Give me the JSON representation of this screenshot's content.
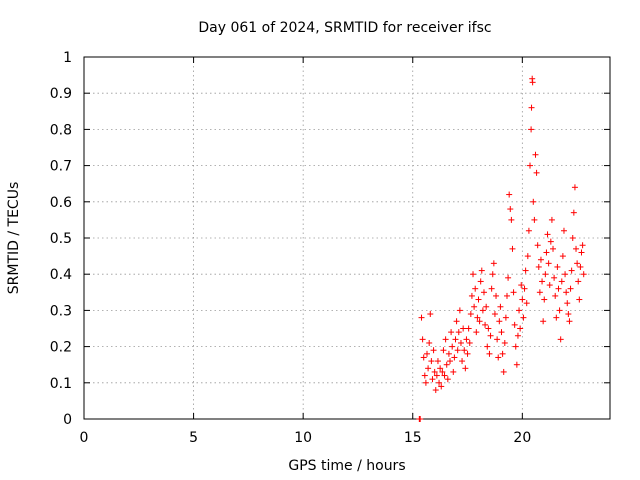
{
  "chart_data": {
    "type": "scatter",
    "title": "Day 061 of 2024, SRMTID for receiver ifsc",
    "xlabel": "GPS time / hours",
    "ylabel": "SRMTID / TECUs",
    "xlim": [
      0,
      24
    ],
    "ylim": [
      0,
      1
    ],
    "xticks": [
      0,
      5,
      10,
      15,
      20
    ],
    "xtick_labels": [
      "0",
      "5",
      "10",
      "15",
      "20"
    ],
    "yticks": [
      0,
      0.1,
      0.2,
      0.3,
      0.4,
      0.5,
      0.6,
      0.7,
      0.8,
      0.9,
      1
    ],
    "ytick_labels": [
      "0",
      "0.1",
      "0.2",
      "0.3",
      "0.4",
      "0.5",
      "0.6",
      "0.7",
      "0.8",
      "0.9",
      "1"
    ],
    "grid": true,
    "marker": "+",
    "color": "#ff0000",
    "series": [
      {
        "name": "SRMTID",
        "points": [
          [
            15.3,
            0.0
          ],
          [
            15.32,
            0.0
          ],
          [
            15.34,
            0.0
          ],
          [
            15.4,
            0.28
          ],
          [
            15.45,
            0.22
          ],
          [
            15.5,
            0.17
          ],
          [
            15.55,
            0.12
          ],
          [
            15.6,
            0.1
          ],
          [
            15.65,
            0.18
          ],
          [
            15.7,
            0.14
          ],
          [
            15.75,
            0.21
          ],
          [
            15.8,
            0.29
          ],
          [
            15.85,
            0.16
          ],
          [
            15.9,
            0.11
          ],
          [
            15.95,
            0.19
          ],
          [
            16.0,
            0.13
          ],
          [
            16.05,
            0.08
          ],
          [
            16.1,
            0.12
          ],
          [
            16.15,
            0.16
          ],
          [
            16.2,
            0.1
          ],
          [
            16.25,
            0.14
          ],
          [
            16.3,
            0.09
          ],
          [
            16.35,
            0.13
          ],
          [
            16.4,
            0.19
          ],
          [
            16.45,
            0.12
          ],
          [
            16.5,
            0.22
          ],
          [
            16.55,
            0.15
          ],
          [
            16.6,
            0.11
          ],
          [
            16.65,
            0.18
          ],
          [
            16.7,
            0.16
          ],
          [
            16.75,
            0.24
          ],
          [
            16.8,
            0.2
          ],
          [
            16.85,
            0.13
          ],
          [
            16.9,
            0.17
          ],
          [
            16.95,
            0.22
          ],
          [
            17.0,
            0.27
          ],
          [
            17.05,
            0.19
          ],
          [
            17.1,
            0.24
          ],
          [
            17.15,
            0.3
          ],
          [
            17.2,
            0.21
          ],
          [
            17.25,
            0.16
          ],
          [
            17.3,
            0.25
          ],
          [
            17.35,
            0.19
          ],
          [
            17.4,
            0.14
          ],
          [
            17.45,
            0.22
          ],
          [
            17.5,
            0.18
          ],
          [
            17.55,
            0.25
          ],
          [
            17.6,
            0.21
          ],
          [
            17.65,
            0.29
          ],
          [
            17.7,
            0.34
          ],
          [
            17.75,
            0.4
          ],
          [
            17.8,
            0.31
          ],
          [
            17.85,
            0.36
          ],
          [
            17.9,
            0.24
          ],
          [
            17.95,
            0.28
          ],
          [
            18.0,
            0.33
          ],
          [
            18.05,
            0.27
          ],
          [
            18.1,
            0.38
          ],
          [
            18.15,
            0.41
          ],
          [
            18.2,
            0.3
          ],
          [
            18.25,
            0.35
          ],
          [
            18.3,
            0.26
          ],
          [
            18.35,
            0.31
          ],
          [
            18.4,
            0.2
          ],
          [
            18.45,
            0.25
          ],
          [
            18.5,
            0.18
          ],
          [
            18.55,
            0.23
          ],
          [
            18.6,
            0.36
          ],
          [
            18.65,
            0.4
          ],
          [
            18.7,
            0.43
          ],
          [
            18.75,
            0.29
          ],
          [
            18.8,
            0.34
          ],
          [
            18.85,
            0.22
          ],
          [
            18.9,
            0.17
          ],
          [
            18.95,
            0.27
          ],
          [
            19.0,
            0.31
          ],
          [
            19.05,
            0.24
          ],
          [
            19.1,
            0.18
          ],
          [
            19.15,
            0.13
          ],
          [
            19.2,
            0.21
          ],
          [
            19.25,
            0.28
          ],
          [
            19.3,
            0.34
          ],
          [
            19.35,
            0.39
          ],
          [
            19.4,
            0.62
          ],
          [
            19.45,
            0.58
          ],
          [
            19.5,
            0.55
          ],
          [
            19.55,
            0.47
          ],
          [
            19.6,
            0.35
          ],
          [
            19.65,
            0.26
          ],
          [
            19.7,
            0.2
          ],
          [
            19.75,
            0.15
          ],
          [
            19.8,
            0.23
          ],
          [
            19.85,
            0.3
          ],
          [
            19.9,
            0.25
          ],
          [
            19.95,
            0.37
          ],
          [
            20.0,
            0.33
          ],
          [
            20.05,
            0.28
          ],
          [
            20.1,
            0.36
          ],
          [
            20.15,
            0.41
          ],
          [
            20.2,
            0.32
          ],
          [
            20.25,
            0.45
          ],
          [
            20.3,
            0.52
          ],
          [
            20.35,
            0.7
          ],
          [
            20.4,
            0.8
          ],
          [
            20.42,
            0.86
          ],
          [
            20.45,
            0.94
          ],
          [
            20.47,
            0.93
          ],
          [
            20.5,
            0.6
          ],
          [
            20.55,
            0.55
          ],
          [
            20.6,
            0.73
          ],
          [
            20.65,
            0.68
          ],
          [
            20.7,
            0.48
          ],
          [
            20.75,
            0.42
          ],
          [
            20.8,
            0.35
          ],
          [
            20.85,
            0.44
          ],
          [
            20.9,
            0.38
          ],
          [
            20.95,
            0.27
          ],
          [
            21.0,
            0.33
          ],
          [
            21.05,
            0.4
          ],
          [
            21.1,
            0.46
          ],
          [
            21.15,
            0.51
          ],
          [
            21.2,
            0.43
          ],
          [
            21.25,
            0.37
          ],
          [
            21.3,
            0.49
          ],
          [
            21.35,
            0.55
          ],
          [
            21.4,
            0.47
          ],
          [
            21.45,
            0.39
          ],
          [
            21.5,
            0.34
          ],
          [
            21.55,
            0.28
          ],
          [
            21.6,
            0.42
          ],
          [
            21.65,
            0.36
          ],
          [
            21.7,
            0.3
          ],
          [
            21.75,
            0.22
          ],
          [
            21.8,
            0.38
          ],
          [
            21.85,
            0.45
          ],
          [
            21.9,
            0.52
          ],
          [
            21.95,
            0.4
          ],
          [
            22.0,
            0.35
          ],
          [
            22.05,
            0.32
          ],
          [
            22.1,
            0.29
          ],
          [
            22.15,
            0.27
          ],
          [
            22.2,
            0.36
          ],
          [
            22.25,
            0.41
          ],
          [
            22.3,
            0.5
          ],
          [
            22.35,
            0.57
          ],
          [
            22.4,
            0.64
          ],
          [
            22.45,
            0.47
          ],
          [
            22.5,
            0.43
          ],
          [
            22.55,
            0.38
          ],
          [
            22.6,
            0.33
          ],
          [
            22.65,
            0.42
          ],
          [
            22.7,
            0.46
          ],
          [
            22.75,
            0.48
          ],
          [
            22.8,
            0.4
          ]
        ]
      }
    ]
  }
}
